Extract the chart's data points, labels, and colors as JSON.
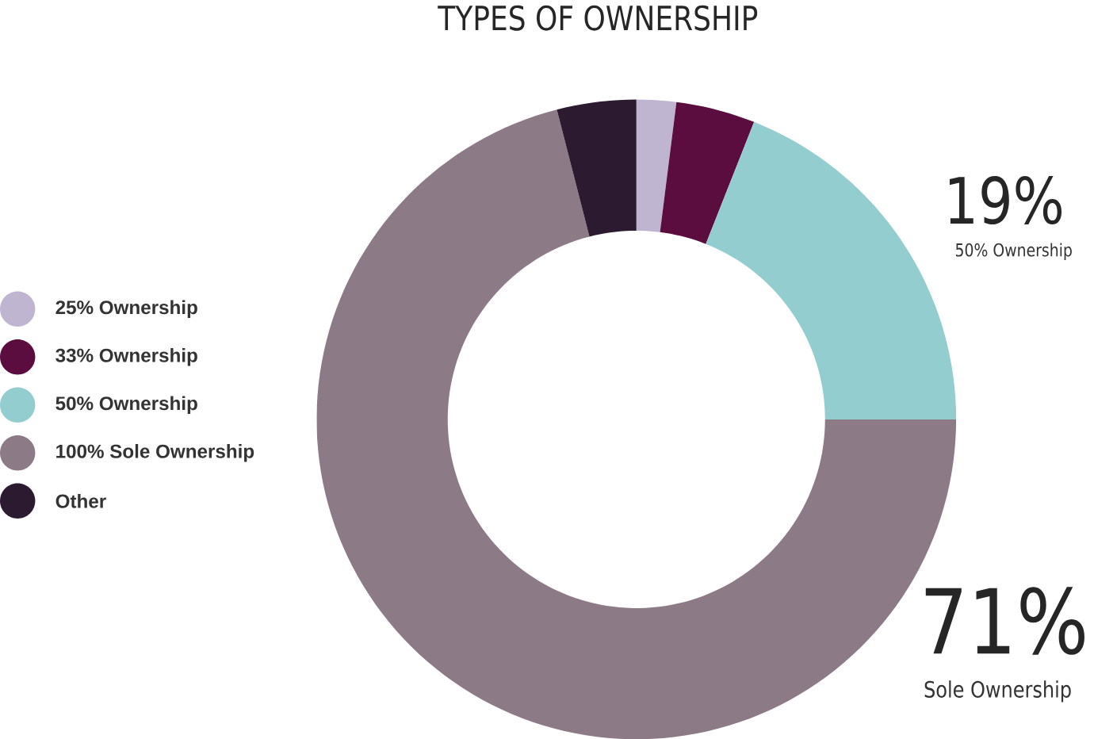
{
  "chart_data": {
    "type": "donut",
    "title": "TYPES OF OWNERSHIP",
    "categories": [
      "25% Ownership",
      "33% Ownership",
      "50% Ownership",
      "100% Sole Ownership",
      "Other"
    ],
    "values": [
      2,
      4,
      19,
      71,
      4
    ],
    "colors": [
      "#c0b5d0",
      "#5a0d3e",
      "#94cdd0",
      "#8d7a87",
      "#2b1a30"
    ],
    "value_labels": [
      null,
      null,
      "19%",
      "71%",
      null
    ],
    "annotations": [
      "50% Ownership",
      "Sole Ownership"
    ],
    "legend": "left"
  }
}
